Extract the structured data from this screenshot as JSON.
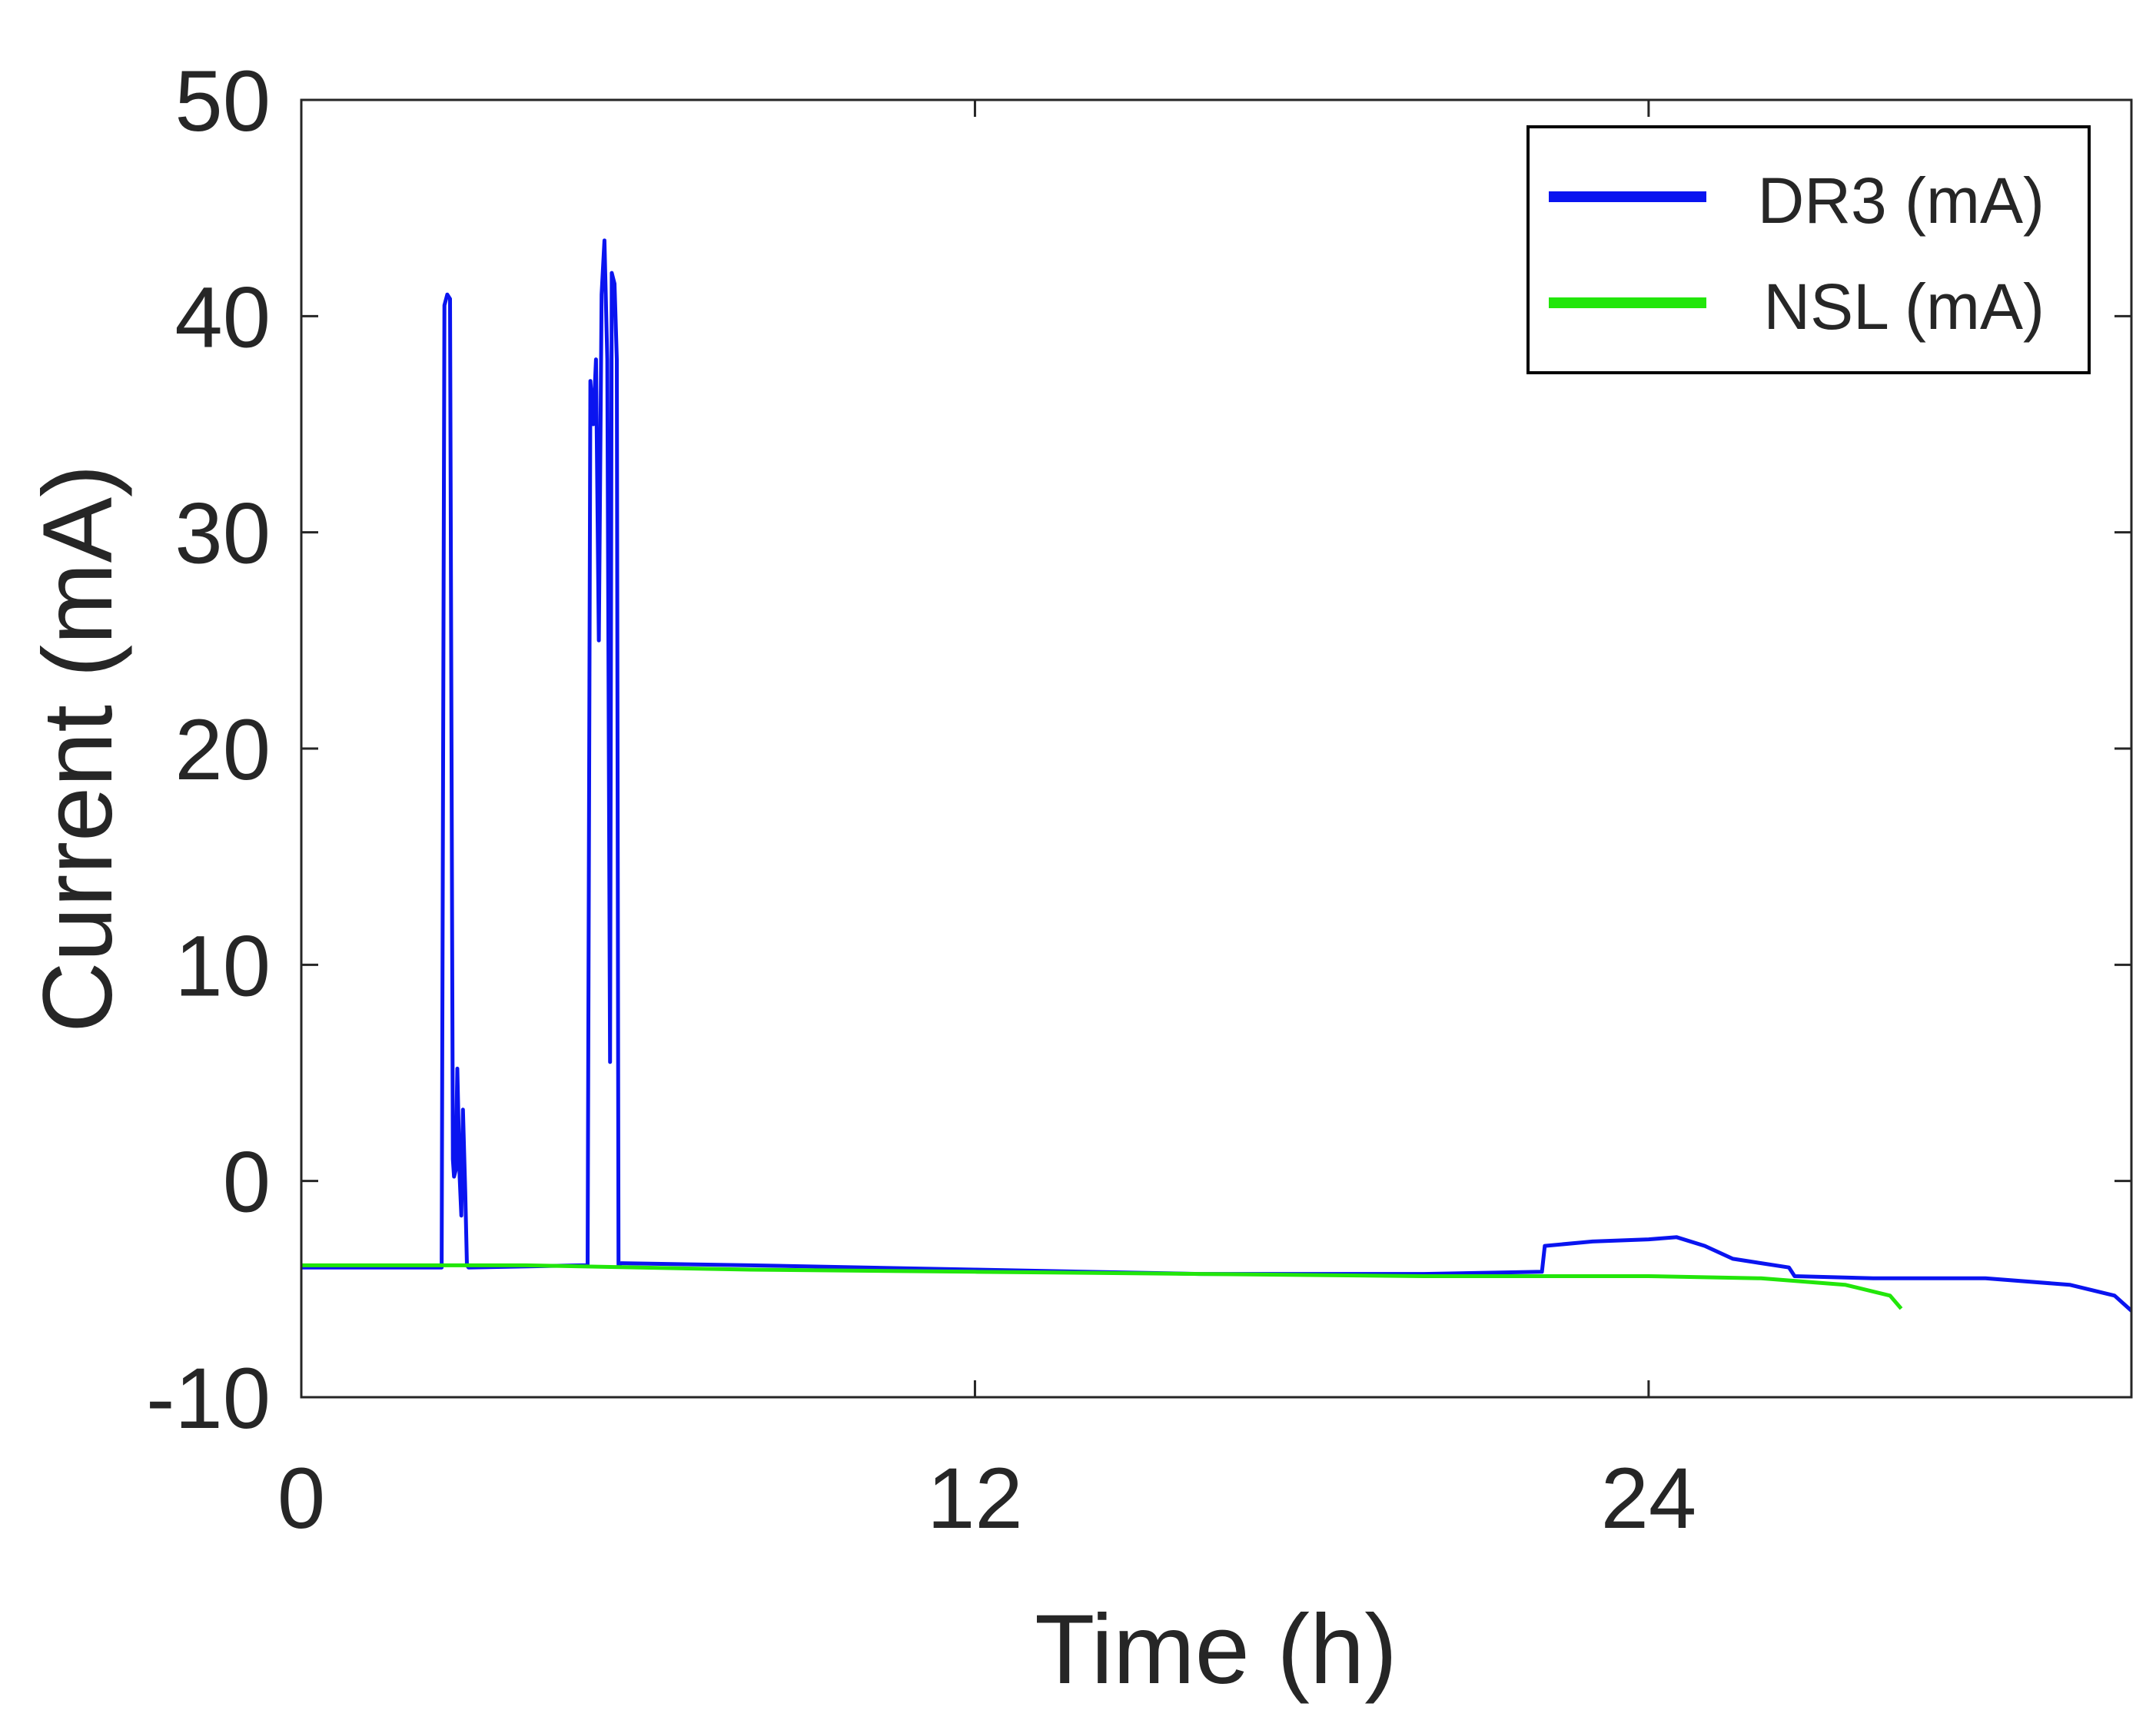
{
  "chart_data": {
    "type": "line",
    "title": "",
    "xlabel": "Time (h)",
    "ylabel": "Current (mA)",
    "xlim": [
      0,
      32.6
    ],
    "ylim": [
      -10,
      50
    ],
    "xticks": [
      0,
      12,
      24
    ],
    "yticks": [
      -10,
      0,
      10,
      20,
      30,
      40,
      50
    ],
    "grid": false,
    "legend": "top-right",
    "series": [
      {
        "name": "DR3 (mA)",
        "color": "#0a14f0",
        "points": [
          [
            0,
            -4.0
          ],
          [
            2.5,
            -4.0
          ],
          [
            2.5,
            -3.9
          ],
          [
            2.55,
            40.5
          ],
          [
            2.6,
            41.0
          ],
          [
            2.65,
            40.8
          ],
          [
            2.7,
            1.0
          ],
          [
            2.72,
            0.2
          ],
          [
            2.75,
            0.5
          ],
          [
            2.78,
            5.2
          ],
          [
            2.82,
            0.2
          ],
          [
            2.85,
            -1.6
          ],
          [
            2.88,
            3.3
          ],
          [
            2.92,
            -0.5
          ],
          [
            2.95,
            -3.9
          ],
          [
            2.98,
            -4.0
          ],
          [
            5.0,
            -3.9
          ],
          [
            5.1,
            -3.9
          ],
          [
            5.15,
            37.0
          ],
          [
            5.2,
            35.0
          ],
          [
            5.25,
            38.0
          ],
          [
            5.3,
            25.0
          ],
          [
            5.35,
            41.0
          ],
          [
            5.4,
            43.5
          ],
          [
            5.45,
            38.0
          ],
          [
            5.5,
            5.5
          ],
          [
            5.53,
            42.0
          ],
          [
            5.58,
            41.5
          ],
          [
            5.62,
            38.0
          ],
          [
            5.65,
            -3.9
          ],
          [
            5.7,
            -3.8
          ],
          [
            8,
            -3.9
          ],
          [
            12,
            -4.1
          ],
          [
            16,
            -4.3
          ],
          [
            20,
            -4.3
          ],
          [
            22.1,
            -4.2
          ],
          [
            22.15,
            -3.0
          ],
          [
            23,
            -2.8
          ],
          [
            24,
            -2.7
          ],
          [
            24.5,
            -2.6
          ],
          [
            25,
            -3.0
          ],
          [
            25.5,
            -3.6
          ],
          [
            26.5,
            -4.0
          ],
          [
            26.6,
            -4.4
          ],
          [
            28,
            -4.5
          ],
          [
            30,
            -4.5
          ],
          [
            31.5,
            -4.8
          ],
          [
            32.3,
            -5.3
          ],
          [
            32.6,
            -6.0
          ]
        ]
      },
      {
        "name": "NSL (mA)",
        "color": "#22e60a",
        "points": [
          [
            0,
            -3.9
          ],
          [
            4,
            -3.9
          ],
          [
            8,
            -4.1
          ],
          [
            12,
            -4.2
          ],
          [
            16,
            -4.3
          ],
          [
            20,
            -4.4
          ],
          [
            24,
            -4.4
          ],
          [
            26,
            -4.5
          ],
          [
            27.5,
            -4.8
          ],
          [
            28.3,
            -5.3
          ],
          [
            28.5,
            -5.9
          ]
        ]
      }
    ]
  }
}
